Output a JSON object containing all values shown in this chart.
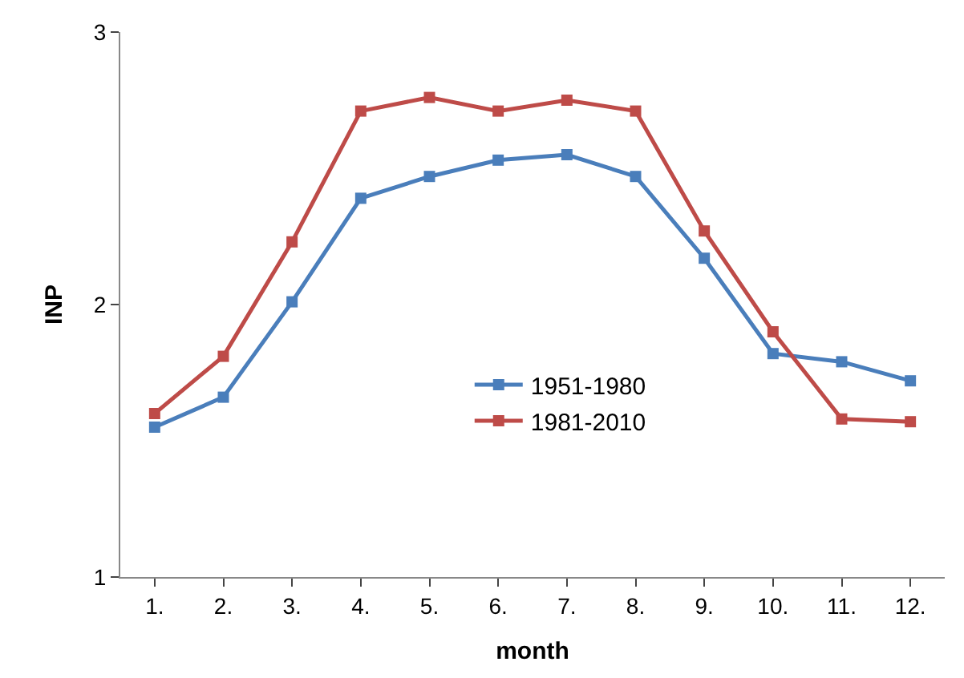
{
  "chart_data": {
    "type": "line",
    "xlabel": "month",
    "ylabel": "INP",
    "categories": [
      "1.",
      "2.",
      "3.",
      "4.",
      "5.",
      "6.",
      "7.",
      "8.",
      "9.",
      "10.",
      "11.",
      "12."
    ],
    "series": [
      {
        "name": "1951-1980",
        "color": "#4a7ebb",
        "values": [
          1.55,
          1.66,
          2.01,
          2.39,
          2.47,
          2.53,
          2.55,
          2.47,
          2.17,
          1.82,
          1.79,
          1.72
        ]
      },
      {
        "name": "1981-2010",
        "color": "#be4b48",
        "values": [
          1.6,
          1.81,
          2.23,
          2.71,
          2.76,
          2.71,
          2.75,
          2.71,
          2.27,
          1.9,
          1.58,
          1.57
        ]
      }
    ],
    "ylim": [
      1,
      3
    ],
    "yticks": [
      1,
      2,
      3
    ],
    "legend": "center",
    "marker": "square",
    "line_style": "solid"
  }
}
